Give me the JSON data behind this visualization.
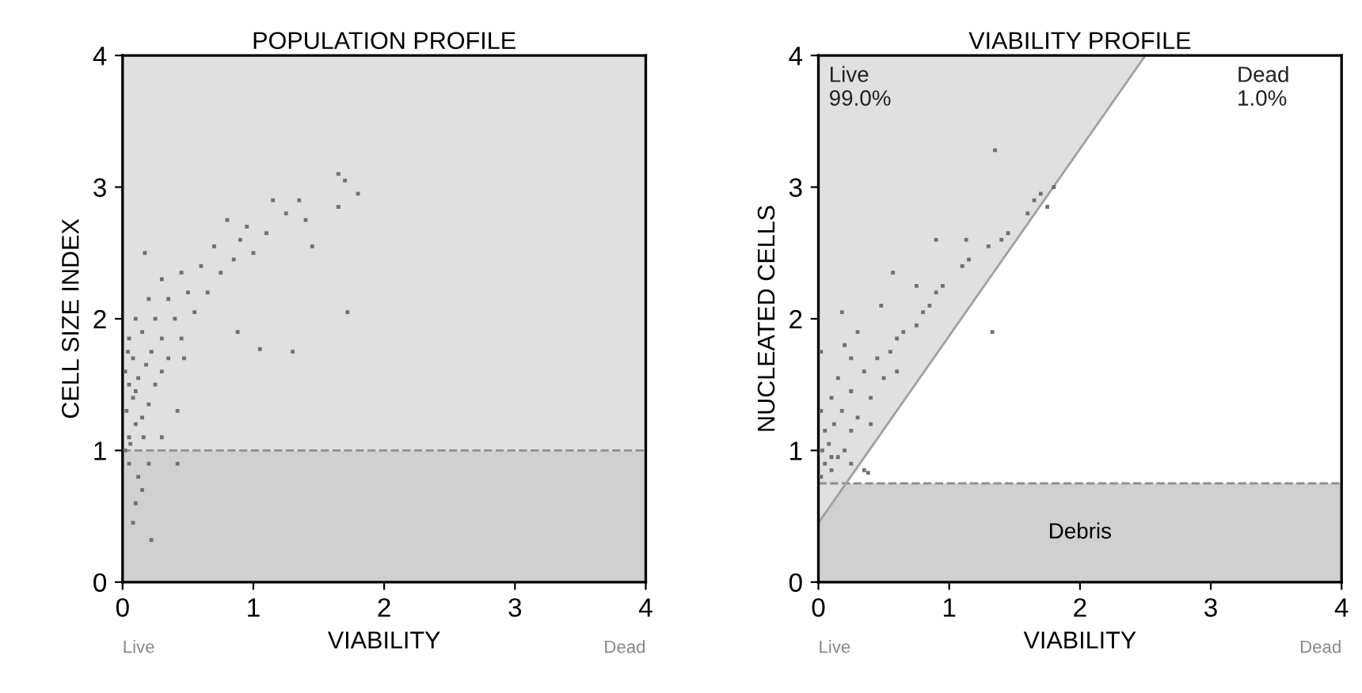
{
  "chart_data": [
    {
      "type": "scatter",
      "title": "POPULATION PROFILE",
      "xlabel": "VIABILITY",
      "ylabel": "CELL SIZE INDEX",
      "xlim": [
        0,
        4
      ],
      "ylim": [
        0,
        4
      ],
      "xticks": [
        0,
        1,
        2,
        3,
        4
      ],
      "yticks": [
        0,
        1,
        2,
        3,
        4
      ],
      "grid": false,
      "legend": false,
      "marker": "square",
      "series": [
        {
          "color": "#707070",
          "x": [
            0.02,
            0.05,
            0.1,
            0.03,
            0.15,
            0.08,
            0.2,
            0.05,
            0.12,
            0.25,
            0.02,
            0.18,
            0.3,
            0.08,
            0.22,
            0.35,
            0.05,
            0.15,
            0.3,
            0.45,
            0.1,
            0.25,
            0.4,
            0.55,
            0.2,
            0.35,
            0.5,
            0.65,
            0.3,
            0.45,
            0.6,
            0.75,
            0.85,
            0.7,
            0.9,
            1.0,
            0.95,
            0.8,
            1.1,
            1.15,
            1.25,
            1.35,
            1.4,
            1.45,
            1.65,
            1.7,
            1.65,
            1.8,
            1.72,
            1.3,
            1.05,
            0.88,
            0.47,
            0.17,
            0.42,
            0.3,
            0.05,
            0.12,
            0.2,
            0.1,
            0.08,
            0.22,
            0.15,
            0.42,
            0.06,
            0.1,
            0.16,
            0.04
          ],
          "values": [
            1.0,
            1.1,
            1.2,
            1.3,
            1.25,
            1.4,
            1.35,
            1.5,
            1.55,
            1.5,
            1.6,
            1.65,
            1.6,
            1.7,
            1.75,
            1.7,
            1.85,
            1.9,
            1.85,
            1.85,
            2.0,
            2.0,
            2.0,
            2.05,
            2.15,
            2.15,
            2.2,
            2.2,
            2.3,
            2.35,
            2.4,
            2.35,
            2.45,
            2.55,
            2.6,
            2.5,
            2.7,
            2.75,
            2.65,
            2.9,
            2.8,
            2.9,
            2.75,
            2.55,
            3.1,
            3.05,
            2.85,
            2.95,
            2.05,
            1.75,
            1.77,
            1.9,
            1.7,
            2.5,
            1.3,
            1.1,
            0.9,
            0.8,
            0.9,
            0.6,
            0.45,
            0.32,
            0.7,
            0.9,
            1.05,
            1.45,
            1.1,
            1.75
          ]
        }
      ],
      "bands": [
        {
          "axis": "y",
          "from": 1,
          "to": 4,
          "color": "#e0e0e0"
        },
        {
          "axis": "y",
          "from": 0,
          "to": 1,
          "color": "#d0d0d0"
        }
      ],
      "ref_lines": [
        {
          "axis": "y",
          "value": 1,
          "color": "#909090",
          "line_style": "dashed"
        }
      ],
      "annotations": [
        "Live",
        "Dead"
      ]
    },
    {
      "type": "scatter",
      "title": "VIABILITY PROFILE",
      "xlabel": "VIABILITY",
      "ylabel": "NUCLEATED CELLS",
      "xlim": [
        0,
        4
      ],
      "ylim": [
        0,
        4
      ],
      "xticks": [
        0,
        1,
        2,
        3,
        4
      ],
      "yticks": [
        0,
        1,
        2,
        3,
        4
      ],
      "grid": false,
      "legend": false,
      "marker": "square",
      "series": [
        {
          "type": "line",
          "color": "#a0a0a0",
          "marker": "none",
          "line_style": "solid",
          "x": [
            0,
            2.5
          ],
          "values": [
            0.45,
            4
          ],
          "lower": [
            0.45,
            4
          ],
          "upper": [
            4,
            4
          ]
        },
        {
          "color": "#707070",
          "x": [
            0.02,
            0.05,
            0.1,
            0.15,
            0.03,
            0.08,
            0.2,
            0.25,
            0.35,
            0.05,
            0.12,
            0.25,
            0.02,
            0.18,
            0.3,
            0.1,
            0.25,
            0.4,
            0.15,
            0.35,
            0.5,
            0.02,
            0.25,
            0.45,
            0.55,
            0.6,
            0.3,
            0.65,
            0.75,
            0.18,
            0.48,
            0.8,
            0.85,
            0.9,
            0.95,
            0.75,
            1.1,
            1.15,
            0.9,
            1.13,
            0.57,
            1.3,
            1.4,
            1.45,
            1.6,
            1.65,
            1.7,
            1.8,
            1.75,
            1.35,
            1.33,
            0.38,
            0.2,
            0.6,
            0.4,
            0.1
          ],
          "values": [
            0.8,
            0.9,
            0.85,
            0.95,
            1.0,
            1.05,
            1.0,
            0.9,
            0.85,
            1.15,
            1.2,
            1.15,
            1.3,
            1.3,
            1.25,
            1.4,
            1.45,
            1.4,
            1.55,
            1.6,
            1.55,
            1.75,
            1.7,
            1.7,
            1.75,
            1.85,
            1.9,
            1.9,
            1.95,
            2.05,
            2.1,
            2.05,
            2.1,
            2.2,
            2.25,
            2.25,
            2.4,
            2.45,
            2.6,
            2.6,
            2.35,
            2.55,
            2.6,
            2.65,
            2.8,
            2.9,
            2.95,
            3.0,
            2.85,
            3.28,
            1.9,
            0.83,
            1.8,
            1.6,
            1.2,
            0.95
          ]
        }
      ],
      "bands": [
        {
          "axis": "y",
          "from": 0,
          "to": 0.75,
          "color": "#d0d0d0",
          "label": "Debris"
        }
      ],
      "ref_lines": [
        {
          "axis": "y",
          "value": 0.75,
          "color": "#909090",
          "line_style": "dashed"
        }
      ],
      "annotations": [
        "Live",
        "Dead",
        "Live\n99.0%",
        "Dead\n1.0%"
      ]
    }
  ]
}
